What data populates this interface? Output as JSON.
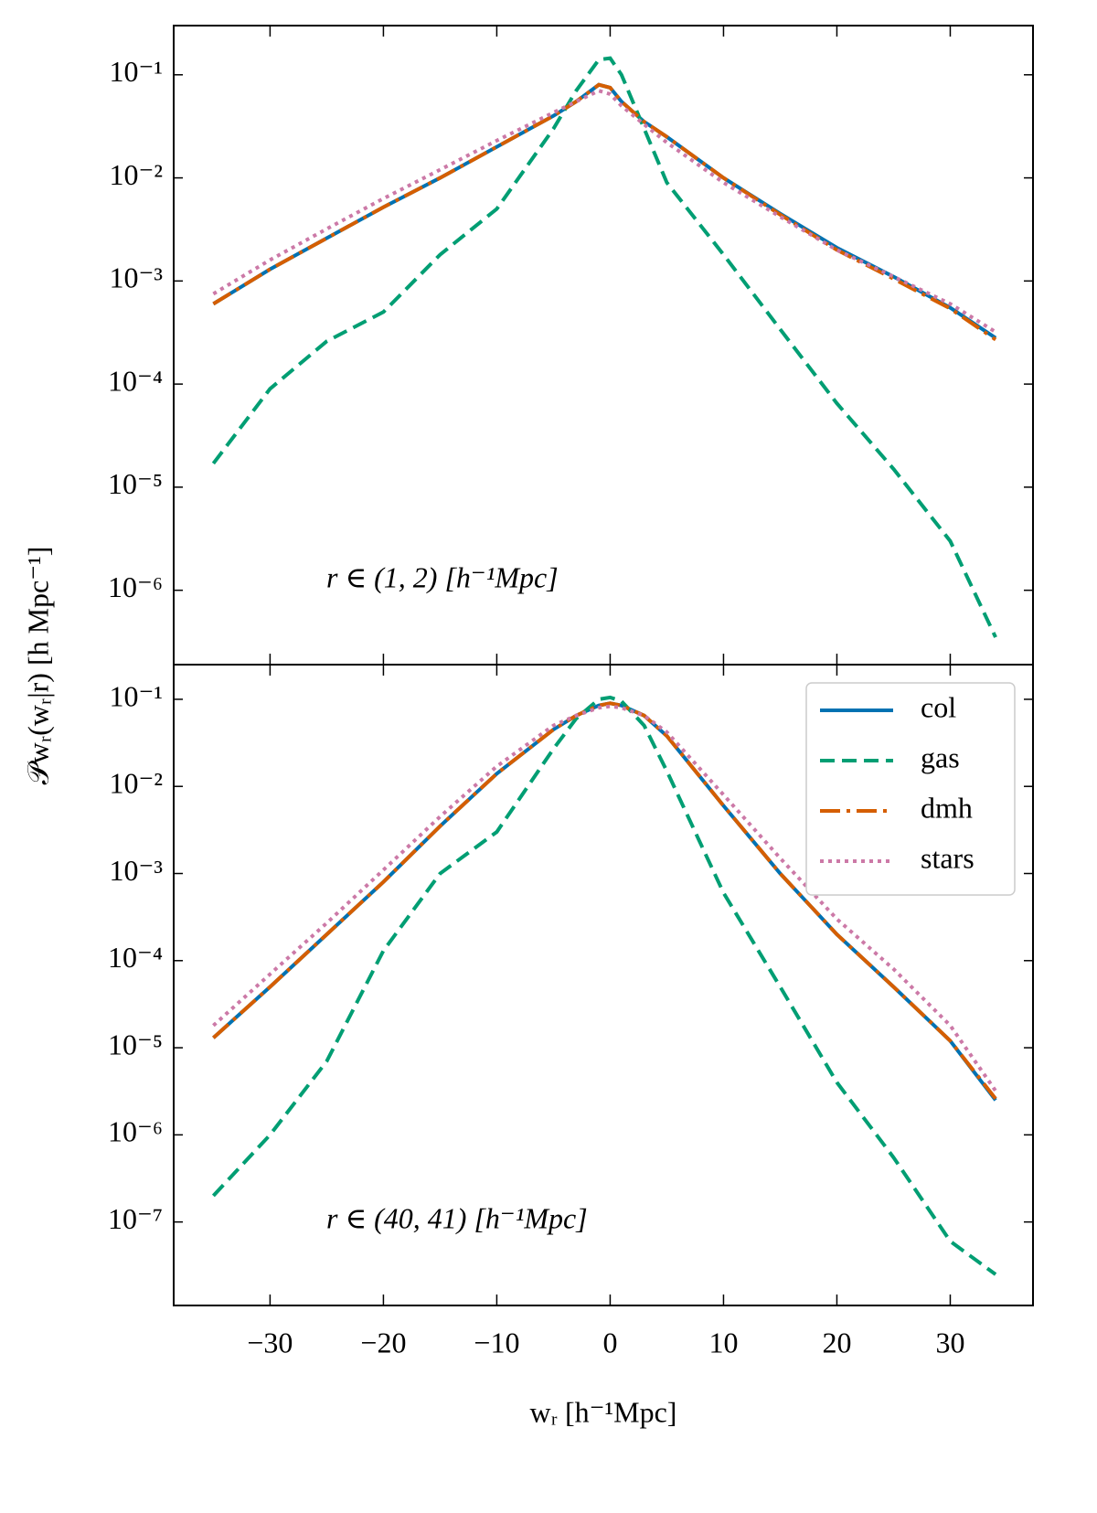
{
  "chart_data": [
    {
      "type": "line",
      "log_y": true,
      "x_tick_labels": false,
      "ylabel": "𝒫wᵣ(wᵣ|r) [h Mpc⁻¹]",
      "annotation": "r ∈ (1, 2)  [h⁻¹Mpc]",
      "x": [
        -35,
        -30,
        -25,
        -20,
        -15,
        -10,
        -5,
        -3,
        -1,
        0,
        1,
        3,
        5,
        10,
        15,
        20,
        25,
        30,
        34
      ],
      "xlim": [
        -38.5,
        37.3
      ],
      "xticks": [
        {
          "value": -30,
          "label": "−30"
        },
        {
          "value": -20,
          "label": "−20"
        },
        {
          "value": -10,
          "label": "−10"
        },
        0,
        10,
        20,
        30
      ],
      "ylim": [
        1.9e-07,
        0.3
      ],
      "yticks": [
        {
          "value": 0.1,
          "label": "10⁻¹"
        },
        {
          "value": 0.01,
          "label": "10⁻²"
        },
        {
          "value": 0.001,
          "label": "10⁻³"
        },
        {
          "value": 0.0001,
          "label": "10⁻⁴"
        },
        {
          "value": 1e-05,
          "label": "10⁻⁵"
        },
        {
          "value": 1e-06,
          "label": "10⁻⁶"
        }
      ],
      "series": [
        {
          "color": "#0072b2",
          "dash": "solid",
          "values": [
            0.0006,
            0.0013,
            0.0026,
            0.0052,
            0.01,
            0.02,
            0.04,
            0.055,
            0.08,
            0.075,
            0.055,
            0.035,
            0.025,
            0.01,
            0.0045,
            0.0021,
            0.0011,
            0.00055,
            0.00028
          ]
        },
        {
          "color": "#009e73",
          "dash": "dashed",
          "values": [
            1.7e-05,
            9e-05,
            0.00026,
            0.0005,
            0.0018,
            0.005,
            0.03,
            0.07,
            0.14,
            0.145,
            0.1,
            0.03,
            0.009,
            0.0018,
            0.00034,
            6.5e-05,
            1.5e-05,
            3e-06,
            3.5e-07
          ]
        },
        {
          "color": "#d55e00",
          "dash": "dashdot",
          "values": [
            0.0006,
            0.0013,
            0.0026,
            0.0052,
            0.01,
            0.02,
            0.04,
            0.055,
            0.08,
            0.075,
            0.055,
            0.035,
            0.025,
            0.01,
            0.0044,
            0.002,
            0.00105,
            0.00054,
            0.00027
          ]
        },
        {
          "color": "#cc79a7",
          "dash": "dotted",
          "values": [
            0.00075,
            0.0016,
            0.0032,
            0.0063,
            0.012,
            0.023,
            0.043,
            0.055,
            0.07,
            0.065,
            0.05,
            0.033,
            0.022,
            0.009,
            0.0042,
            0.002,
            0.0011,
            0.0006,
            0.00032
          ]
        }
      ]
    },
    {
      "type": "line",
      "log_y": true,
      "x_tick_labels": true,
      "legend": "upper right",
      "xlabel": "wᵣ  [h⁻¹Mpc]",
      "annotation": "r ∈ (40, 41)  [h⁻¹Mpc]",
      "x": [
        -35,
        -30,
        -25,
        -20,
        -15,
        -10,
        -5,
        -3,
        -1,
        0,
        1,
        3,
        5,
        10,
        15,
        20,
        25,
        30,
        34
      ],
      "xlim": [
        -38.5,
        37.3
      ],
      "xticks": [
        {
          "value": -30,
          "label": "−30"
        },
        {
          "value": -20,
          "label": "−20"
        },
        {
          "value": -10,
          "label": "−10"
        },
        0,
        10,
        20,
        30
      ],
      "ylim": [
        1.1e-08,
        0.25
      ],
      "yticks": [
        {
          "value": 0.1,
          "label": "10⁻¹"
        },
        {
          "value": 0.01,
          "label": "10⁻²"
        },
        {
          "value": 0.001,
          "label": "10⁻³"
        },
        {
          "value": 0.0001,
          "label": "10⁻⁴"
        },
        {
          "value": 1e-05,
          "label": "10⁻⁵"
        },
        {
          "value": 1e-06,
          "label": "10⁻⁶"
        },
        {
          "value": 1e-07,
          "label": "10⁻⁷"
        }
      ],
      "series": [
        {
          "name": "col",
          "color": "#0072b2",
          "dash": "solid",
          "values": [
            1.3e-05,
            5e-05,
            0.0002,
            0.0008,
            0.0035,
            0.014,
            0.045,
            0.065,
            0.085,
            0.09,
            0.085,
            0.065,
            0.038,
            0.006,
            0.001,
            0.0002,
            5e-05,
            1.2e-05,
            2.5e-06
          ]
        },
        {
          "name": "gas",
          "color": "#009e73",
          "dash": "dashed",
          "values": [
            2e-07,
            1e-06,
            7e-06,
            0.00013,
            0.001,
            0.003,
            0.027,
            0.06,
            0.1,
            0.105,
            0.095,
            0.05,
            0.015,
            0.0006,
            5e-05,
            4e-06,
            5.5e-07,
            6e-08,
            2.5e-08
          ]
        },
        {
          "name": "dmh",
          "color": "#d55e00",
          "dash": "dashdot",
          "values": [
            1.3e-05,
            5e-05,
            0.0002,
            0.0008,
            0.0035,
            0.014,
            0.045,
            0.065,
            0.085,
            0.09,
            0.085,
            0.065,
            0.038,
            0.006,
            0.001,
            0.0002,
            5e-05,
            1.2e-05,
            2.6e-06
          ]
        },
        {
          "name": "stars",
          "color": "#cc79a7",
          "dash": "dotted",
          "values": [
            1.8e-05,
            7e-05,
            0.00027,
            0.0011,
            0.0045,
            0.017,
            0.05,
            0.065,
            0.08,
            0.083,
            0.08,
            0.065,
            0.042,
            0.008,
            0.0015,
            0.0003,
            8e-05,
            1.8e-05,
            3.2e-06
          ]
        }
      ]
    }
  ]
}
